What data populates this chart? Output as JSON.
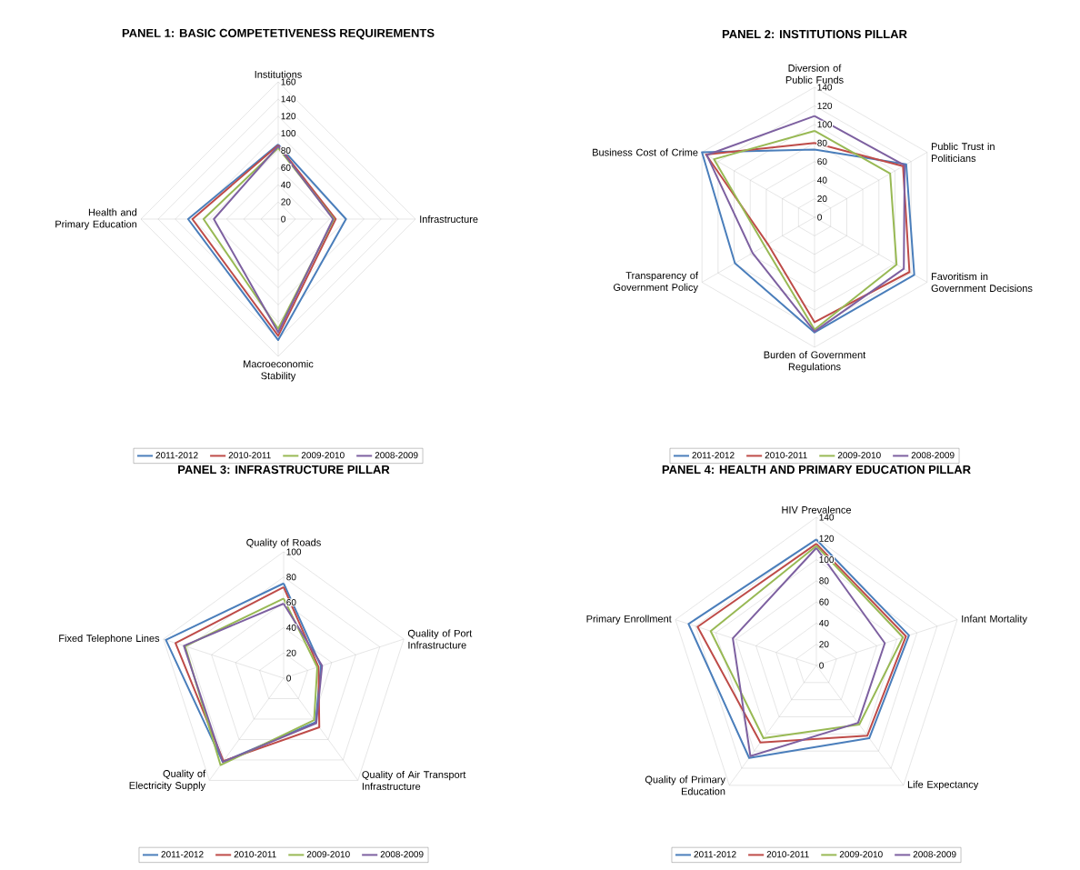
{
  "chart_data": [
    {
      "type": "radar",
      "title": "PANEL 1: BASIC COMPETETIVENESS  REQUIREMENTS",
      "categories": [
        "Institutions",
        "Infrastructure",
        "Macroeconomic Stability",
        "Health and Primary Education"
      ],
      "ylim": [
        0,
        160
      ],
      "yticks": [
        0,
        20,
        40,
        60,
        80,
        100,
        120,
        140,
        160
      ],
      "grid": true,
      "legend": "bottom",
      "series": [
        {
          "name": "2011-2012",
          "color": "#4a7ebb",
          "values": [
            87,
            79,
            141,
            105
          ]
        },
        {
          "name": "2010-2011",
          "color": "#be4b48",
          "values": [
            86,
            67,
            136,
            100
          ]
        },
        {
          "name": "2009-2010",
          "color": "#98b954",
          "values": [
            83,
            65,
            128,
            87
          ]
        },
        {
          "name": "2008-2009",
          "color": "#7d60a0",
          "values": [
            85,
            64,
            132,
            75
          ]
        }
      ]
    },
    {
      "type": "radar",
      "title": "PANEL 2: INSTITUTIONS PILLAR",
      "categories": [
        "Diversion of Public Funds",
        "Public Trust in Politicians",
        "Favoritism in Government Decisions",
        "Burden of Government Regulations",
        "Transparency of Government Policy",
        "Business Cost of Crime"
      ],
      "ylim": [
        0,
        140
      ],
      "yticks": [
        0,
        20,
        40,
        60,
        80,
        100,
        120,
        140
      ],
      "grid": true,
      "legend": "bottom",
      "series": [
        {
          "name": "2011-2012",
          "color": "#4a7ebb",
          "values": [
            73,
            114,
            124,
            124,
            99,
            140
          ]
        },
        {
          "name": "2010-2011",
          "color": "#be4b48",
          "values": [
            80,
            110,
            118,
            113,
            58,
            135
          ]
        },
        {
          "name": "2009-2010",
          "color": "#98b954",
          "values": [
            93,
            94,
            102,
            121,
            62,
            125
          ]
        },
        {
          "name": "2008-2009",
          "color": "#7d60a0",
          "values": [
            109,
            112,
            111,
            123,
            77,
            134
          ]
        }
      ]
    },
    {
      "type": "radar",
      "title": "PANEL 3: INFRASTRUCTURE PILLAR",
      "categories": [
        "Quality of Roads",
        "Quality of Port Infrastructure",
        "Quality of Air Transport Infrastructure",
        "Quality of Electricity Supply",
        "Fixed Telephone Lines"
      ],
      "ylim": [
        0,
        100
      ],
      "yticks": [
        0,
        20,
        40,
        60,
        80,
        100
      ],
      "grid": true,
      "legend": "bottom",
      "series": [
        {
          "name": "2011-2012",
          "color": "#4a7ebb",
          "values": [
            75,
            31,
            43,
            82,
            98
          ]
        },
        {
          "name": "2010-2011",
          "color": "#be4b48",
          "values": [
            72,
            29,
            48,
            81,
            90
          ]
        },
        {
          "name": "2009-2010",
          "color": "#98b954",
          "values": [
            63,
            28,
            41,
            85,
            82
          ]
        },
        {
          "name": "2008-2009",
          "color": "#7d60a0",
          "values": [
            59,
            32,
            44,
            82,
            83
          ]
        }
      ]
    },
    {
      "type": "radar",
      "title": "PANEL 4: HEALTH AND PRIMARY EDUCATION PILLAR",
      "categories": [
        "HIV Prevalence",
        "Infant Mortality",
        "Life Expectancy",
        "Quality of Primary Education",
        "Primary Enrollment"
      ],
      "ylim": [
        0,
        140
      ],
      "yticks": [
        0,
        20,
        40,
        60,
        80,
        100,
        120,
        140
      ],
      "grid": true,
      "legend": "bottom",
      "series": [
        {
          "name": "2011-2012",
          "color": "#4a7ebb",
          "values": [
            119,
            92,
            85,
            108,
            127
          ]
        },
        {
          "name": "2010-2011",
          "color": "#be4b48",
          "values": [
            115,
            89,
            82,
            90,
            118
          ]
        },
        {
          "name": "2009-2010",
          "color": "#98b954",
          "values": [
            113,
            86,
            69,
            85,
            105
          ]
        },
        {
          "name": "2008-2009",
          "color": "#7d60a0",
          "values": [
            111,
            68,
            67,
            106,
            83
          ]
        }
      ]
    }
  ]
}
